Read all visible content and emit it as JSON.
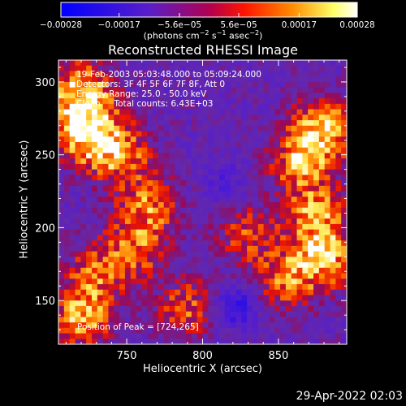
{
  "chart_data": {
    "type": "heatmap",
    "title": "Reconstructed RHESSI Image",
    "xlabel": "Heliocentric X (arcsec)",
    "ylabel": "Heliocentric Y (arcsec)",
    "xlim": [
      705,
      895
    ],
    "ylim": [
      120,
      315
    ],
    "x_ticks": [
      750,
      800,
      850
    ],
    "y_ticks": [
      150,
      200,
      250,
      300
    ],
    "colorbar": {
      "range": [
        -0.00028,
        0.00028
      ],
      "ticks": [
        {
          "value": -0.00028,
          "label": "−0.00028"
        },
        {
          "value": -0.00017,
          "label": "−0.00017"
        },
        {
          "value": -5.6e-05,
          "label": "−5.6e−05"
        },
        {
          "value": 5.6e-05,
          "label": "5.6e−05"
        },
        {
          "value": 0.00017,
          "label": "0.00017"
        },
        {
          "value": 0.00028,
          "label": "0.00028"
        }
      ],
      "unit_text": "(photons cm",
      "colors": [
        "#0000ff",
        "#6a2ad0",
        "#ff0000",
        "#ff8c00",
        "#ffff66",
        "#ffffff"
      ]
    },
    "bright_regions": [
      {
        "x": 724,
        "y": 265,
        "level": 1.0
      },
      {
        "x": 720,
        "y": 292,
        "level": 0.9
      },
      {
        "x": 745,
        "y": 250,
        "level": 0.65
      },
      {
        "x": 765,
        "y": 215,
        "level": 0.6
      },
      {
        "x": 755,
        "y": 185,
        "level": 0.55
      },
      {
        "x": 730,
        "y": 170,
        "level": 0.5
      },
      {
        "x": 720,
        "y": 140,
        "level": 0.75
      },
      {
        "x": 880,
        "y": 268,
        "level": 0.85
      },
      {
        "x": 865,
        "y": 245,
        "level": 0.7
      },
      {
        "x": 875,
        "y": 210,
        "level": 0.65
      },
      {
        "x": 880,
        "y": 180,
        "level": 0.8
      },
      {
        "x": 855,
        "y": 165,
        "level": 0.55
      },
      {
        "x": 830,
        "y": 195,
        "level": 0.45
      },
      {
        "x": 790,
        "y": 145,
        "level": 0.5
      }
    ],
    "dim_regions": [
      {
        "x": 822,
        "y": 145,
        "level": -0.55
      },
      {
        "x": 815,
        "y": 230,
        "level": -0.25
      }
    ]
  },
  "annotations": {
    "time_range": "19-Feb-2003 05:03:48.000 to 05:09:24.000",
    "detectors": "Detectors: 3F 4F 5F 6F 7F 8F, Att 0",
    "energy_range": "Energy Range: 25.0 - 50.0 keV",
    "clean": "Clean     Total counts: 6.43E+03",
    "peak": "Position of Peak = [724,265]"
  },
  "timestamp": "29-Apr-2022 02:03"
}
